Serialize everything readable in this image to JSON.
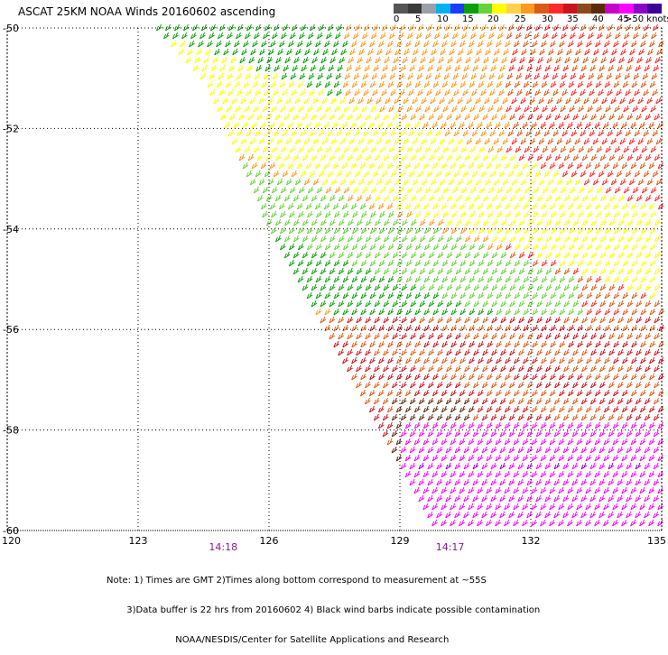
{
  "title": "ASCAT 25KM NOAA Winds 20160602 ascending",
  "legend": {
    "colors": [
      "#555555",
      "#3a3a3a",
      "#9aa0a6",
      "#00b2ee",
      "#1c3cff",
      "#0aa00a",
      "#66d23c",
      "#ffff00",
      "#ffd24a",
      "#ff9a1e",
      "#dc5a14",
      "#ff2828",
      "#c8141e",
      "#8b4a1e",
      "#5a2a0a",
      "#c800c8",
      "#ff00ff",
      "#8a00c8",
      "#3c0096"
    ],
    "labels": [
      "0",
      "5",
      "10",
      "15",
      "20",
      "25",
      "30",
      "35",
      "40",
      "45",
      ">50 knots"
    ]
  },
  "axes": {
    "lat_labels": [
      "-50",
      "-52",
      "-54",
      "-56",
      "-58",
      "-60"
    ],
    "lon_labels": [
      "120",
      "123",
      "126",
      "129",
      "132",
      "135"
    ],
    "lat_range": [
      -60,
      -50
    ],
    "lon_range": [
      120,
      135
    ]
  },
  "times": [
    "14:18",
    "14:17"
  ],
  "notes": [
    "Note: 1) Times are GMT 2)Times along bottom correspond to measurement at ~55S",
    "       3)Data buffer is 22 hrs from 20160602 4) Black wind barbs indicate possible contamination",
    "                        NOAA/NESDIS/Center for Satellite Applications and Research"
  ]
}
